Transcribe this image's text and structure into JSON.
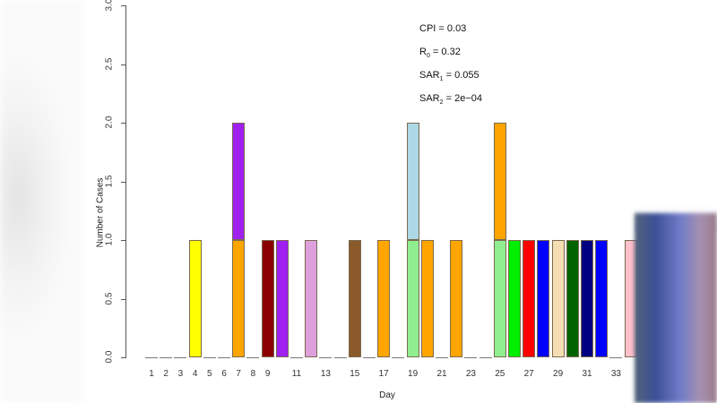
{
  "chart_data": {
    "type": "bar",
    "stacked": true,
    "title": "",
    "xlabel": "Day",
    "ylabel": "Number of Cases",
    "ylim": [
      0,
      3.0
    ],
    "yticks": [
      "0.0",
      "0.5",
      "1.0",
      "1.5",
      "2.0",
      "2.5",
      "3.0"
    ],
    "xtick_labels": [
      "1",
      "2",
      "3",
      "4",
      "5",
      "6",
      "7",
      "8",
      "9",
      "11",
      "13",
      "15",
      "17",
      "19",
      "21",
      "23",
      "25",
      "27",
      "29",
      "31",
      "33"
    ],
    "categories": [
      1,
      2,
      3,
      4,
      5,
      6,
      7,
      8,
      9,
      10,
      11,
      12,
      13,
      14,
      15,
      16,
      17,
      18,
      19,
      20,
      21,
      22,
      23,
      24,
      25,
      26,
      27,
      28,
      29,
      30,
      31,
      32,
      33,
      34
    ],
    "bars": [
      {
        "day": 4,
        "segments": [
          {
            "value": 1,
            "color": "#ffff00"
          }
        ]
      },
      {
        "day": 7,
        "segments": [
          {
            "value": 1,
            "color": "#ffa500"
          },
          {
            "value": 1,
            "color": "#a020f0"
          }
        ]
      },
      {
        "day": 9,
        "segments": [
          {
            "value": 1,
            "color": "#8b0000"
          }
        ]
      },
      {
        "day": 10,
        "segments": [
          {
            "value": 1,
            "color": "#a020f0"
          }
        ]
      },
      {
        "day": 12,
        "segments": [
          {
            "value": 1,
            "color": "#dda0dd"
          }
        ]
      },
      {
        "day": 15,
        "segments": [
          {
            "value": 1,
            "color": "#8b5a2b"
          }
        ]
      },
      {
        "day": 17,
        "segments": [
          {
            "value": 1,
            "color": "#ffa500"
          }
        ]
      },
      {
        "day": 19,
        "segments": [
          {
            "value": 1,
            "color": "#90ee90"
          },
          {
            "value": 1,
            "color": "#add8e6"
          }
        ]
      },
      {
        "day": 20,
        "segments": [
          {
            "value": 1,
            "color": "#ffa500"
          }
        ]
      },
      {
        "day": 22,
        "segments": [
          {
            "value": 1,
            "color": "#ffa500"
          }
        ]
      },
      {
        "day": 25,
        "segments": [
          {
            "value": 1,
            "color": "#90ee90"
          },
          {
            "value": 1,
            "color": "#ffa500"
          }
        ]
      },
      {
        "day": 26,
        "segments": [
          {
            "value": 1,
            "color": "#00ee00"
          }
        ]
      },
      {
        "day": 27,
        "segments": [
          {
            "value": 1,
            "color": "#ff0000"
          }
        ]
      },
      {
        "day": 28,
        "segments": [
          {
            "value": 1,
            "color": "#0000ff"
          }
        ]
      },
      {
        "day": 29,
        "segments": [
          {
            "value": 1,
            "color": "#f5deb3"
          }
        ]
      },
      {
        "day": 30,
        "segments": [
          {
            "value": 1,
            "color": "#006400"
          }
        ]
      },
      {
        "day": 31,
        "segments": [
          {
            "value": 1,
            "color": "#000080"
          }
        ]
      },
      {
        "day": 32,
        "segments": [
          {
            "value": 1,
            "color": "#0000ff"
          }
        ]
      },
      {
        "day": 34,
        "segments": [
          {
            "value": 1,
            "color": "#ffc0cb"
          }
        ]
      }
    ],
    "totals_by_day": {
      "1": 0,
      "2": 0,
      "3": 0,
      "4": 1,
      "5": 0,
      "6": 0,
      "7": 2,
      "8": 0,
      "9": 1,
      "10": 1,
      "11": 0,
      "12": 1,
      "13": 0,
      "14": 0,
      "15": 1,
      "16": 0,
      "17": 1,
      "18": 0,
      "19": 2,
      "20": 1,
      "21": 0,
      "22": 1,
      "23": 0,
      "24": 0,
      "25": 2,
      "26": 1,
      "27": 1,
      "28": 1,
      "29": 1,
      "30": 1,
      "31": 1,
      "32": 1,
      "33": 0,
      "34": 1
    },
    "annotations": [
      {
        "label": "CPI",
        "sub": "",
        "value": "0.03"
      },
      {
        "label": "R",
        "sub": "0",
        "value": "0.32"
      },
      {
        "label": "SAR",
        "sub": "1",
        "value": "0.055"
      },
      {
        "label": "SAR",
        "sub": "2",
        "value": "2e−04"
      }
    ],
    "grid": false,
    "legend": null
  }
}
